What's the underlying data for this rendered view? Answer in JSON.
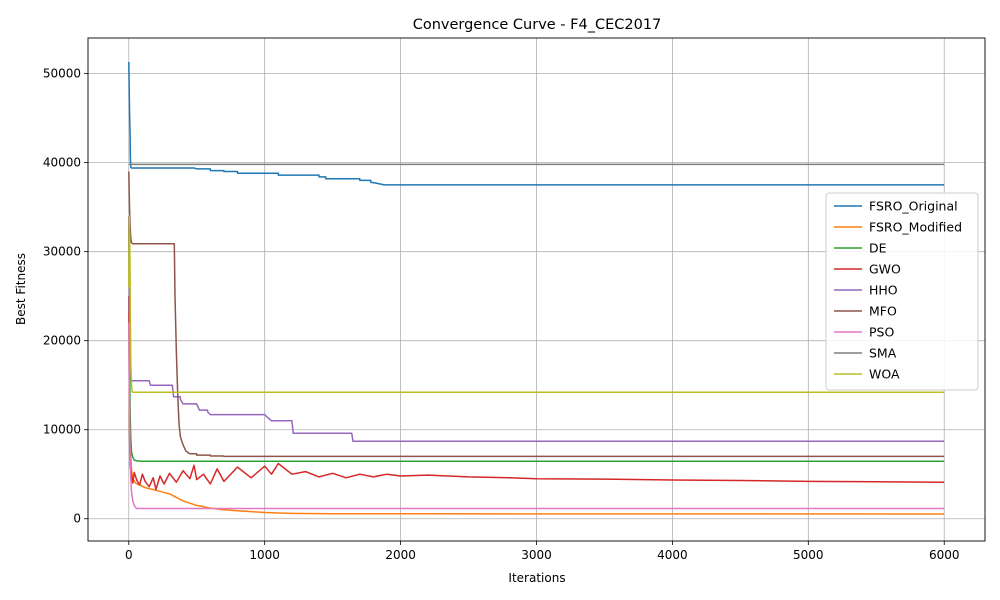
{
  "chart_data": {
    "type": "line",
    "title": "Convergence Curve - F4_CEC2017",
    "xlabel": "Iterations",
    "ylabel": "Best Fitness",
    "xlim": [
      -300,
      6300
    ],
    "ylim": [
      -2500,
      54000
    ],
    "xticks": [
      0,
      1000,
      2000,
      3000,
      4000,
      5000,
      6000
    ],
    "yticks": [
      0,
      10000,
      20000,
      30000,
      40000,
      50000
    ],
    "grid": true,
    "legend_position": "center-right",
    "series": [
      {
        "name": "FSRO_Original",
        "color": "#1f77b4",
        "x": [
          0,
          5,
          8,
          10,
          12,
          15,
          20,
          480,
          500,
          600,
          700,
          800,
          1100,
          1400,
          1450,
          1700,
          1780,
          1820,
          1850,
          1880,
          6000
        ],
        "y": [
          51300,
          46000,
          44000,
          43000,
          40500,
          39500,
          39400,
          39400,
          39300,
          39100,
          39000,
          38800,
          38600,
          38400,
          38200,
          38000,
          37800,
          37700,
          37600,
          37500,
          37500
        ]
      },
      {
        "name": "FSRO_Modified",
        "color": "#ff7f0e",
        "x": [
          0,
          5,
          10,
          15,
          20,
          30,
          50,
          80,
          120,
          200,
          300,
          400,
          500,
          600,
          700,
          800,
          900,
          1000,
          1100,
          1200,
          1500,
          2000,
          6000
        ],
        "y": [
          23000,
          15000,
          10000,
          7000,
          5500,
          4500,
          4000,
          3800,
          3500,
          3200,
          2800,
          2000,
          1500,
          1200,
          1000,
          900,
          800,
          700,
          650,
          600,
          560,
          550,
          530
        ]
      },
      {
        "name": "DE",
        "color": "#2ca02c",
        "x": [
          0,
          5,
          10,
          15,
          20,
          30,
          40,
          60,
          100,
          200,
          6000
        ],
        "y": [
          33000,
          20000,
          12000,
          9000,
          7500,
          6900,
          6600,
          6500,
          6450,
          6450,
          6450
        ]
      },
      {
        "name": "GWO",
        "color": "#d62728",
        "x": [
          0,
          5,
          10,
          20,
          30,
          40,
          60,
          80,
          100,
          120,
          150,
          180,
          200,
          230,
          260,
          300,
          350,
          400,
          450,
          480,
          500,
          550,
          600,
          650,
          700,
          800,
          900,
          1000,
          1050,
          1100,
          1200,
          1300,
          1400,
          1500,
          1600,
          1700,
          1800,
          1900,
          2000,
          2200,
          2500,
          2800,
          3000,
          3500,
          4000,
          4500,
          5000,
          5500,
          6000
        ],
        "y": [
          25000,
          10000,
          6000,
          4800,
          4000,
          5200,
          4300,
          3800,
          5000,
          4200,
          3600,
          4600,
          3300,
          4800,
          3900,
          5100,
          4100,
          5400,
          4500,
          6000,
          4400,
          5000,
          3900,
          5600,
          4200,
          5800,
          4600,
          5900,
          5000,
          6200,
          5000,
          5300,
          4700,
          5100,
          4600,
          5000,
          4700,
          5000,
          4800,
          4900,
          4700,
          4600,
          4500,
          4450,
          4350,
          4300,
          4200,
          4150,
          4100
        ]
      },
      {
        "name": "HHO",
        "color": "#9467bd",
        "x": [
          0,
          5,
          10,
          15,
          20,
          25,
          150,
          160,
          320,
          330,
          380,
          400,
          500,
          520,
          580,
          600,
          1000,
          1020,
          1050,
          1200,
          1210,
          1640,
          1650,
          6000
        ],
        "y": [
          34000,
          20000,
          17000,
          16000,
          15600,
          15500,
          15500,
          15000,
          15000,
          13700,
          13400,
          12900,
          12900,
          12200,
          12000,
          11700,
          11700,
          11400,
          11000,
          11000,
          9600,
          9600,
          8700,
          8700
        ]
      },
      {
        "name": "MFO",
        "color": "#8c564b",
        "x": [
          0,
          5,
          10,
          15,
          20,
          30,
          335,
          340,
          350,
          360,
          370,
          380,
          400,
          420,
          450,
          500,
          600,
          700,
          6000
        ],
        "y": [
          39000,
          35000,
          33000,
          31500,
          31000,
          30900,
          30900,
          25000,
          19000,
          14000,
          10500,
          9200,
          8300,
          7600,
          7300,
          7150,
          7050,
          7000,
          7000
        ]
      },
      {
        "name": "PSO",
        "color": "#e377c2",
        "x": [
          0,
          5,
          10,
          15,
          20,
          30,
          40,
          50,
          60,
          6000
        ],
        "y": [
          22000,
          12000,
          7000,
          4500,
          3000,
          2000,
          1500,
          1250,
          1150,
          1150
        ]
      },
      {
        "name": "SMA",
        "color": "#7f7f7f",
        "x": [
          0,
          5,
          6000
        ],
        "y": [
          39800,
          39800,
          39800
        ]
      },
      {
        "name": "WOA",
        "color": "#bcbd22",
        "x": [
          0,
          4,
          8,
          12,
          16,
          20,
          25,
          30,
          6000
        ],
        "y": [
          26000,
          34000,
          30000,
          22000,
          17000,
          15000,
          14300,
          14200,
          14200
        ]
      }
    ]
  }
}
